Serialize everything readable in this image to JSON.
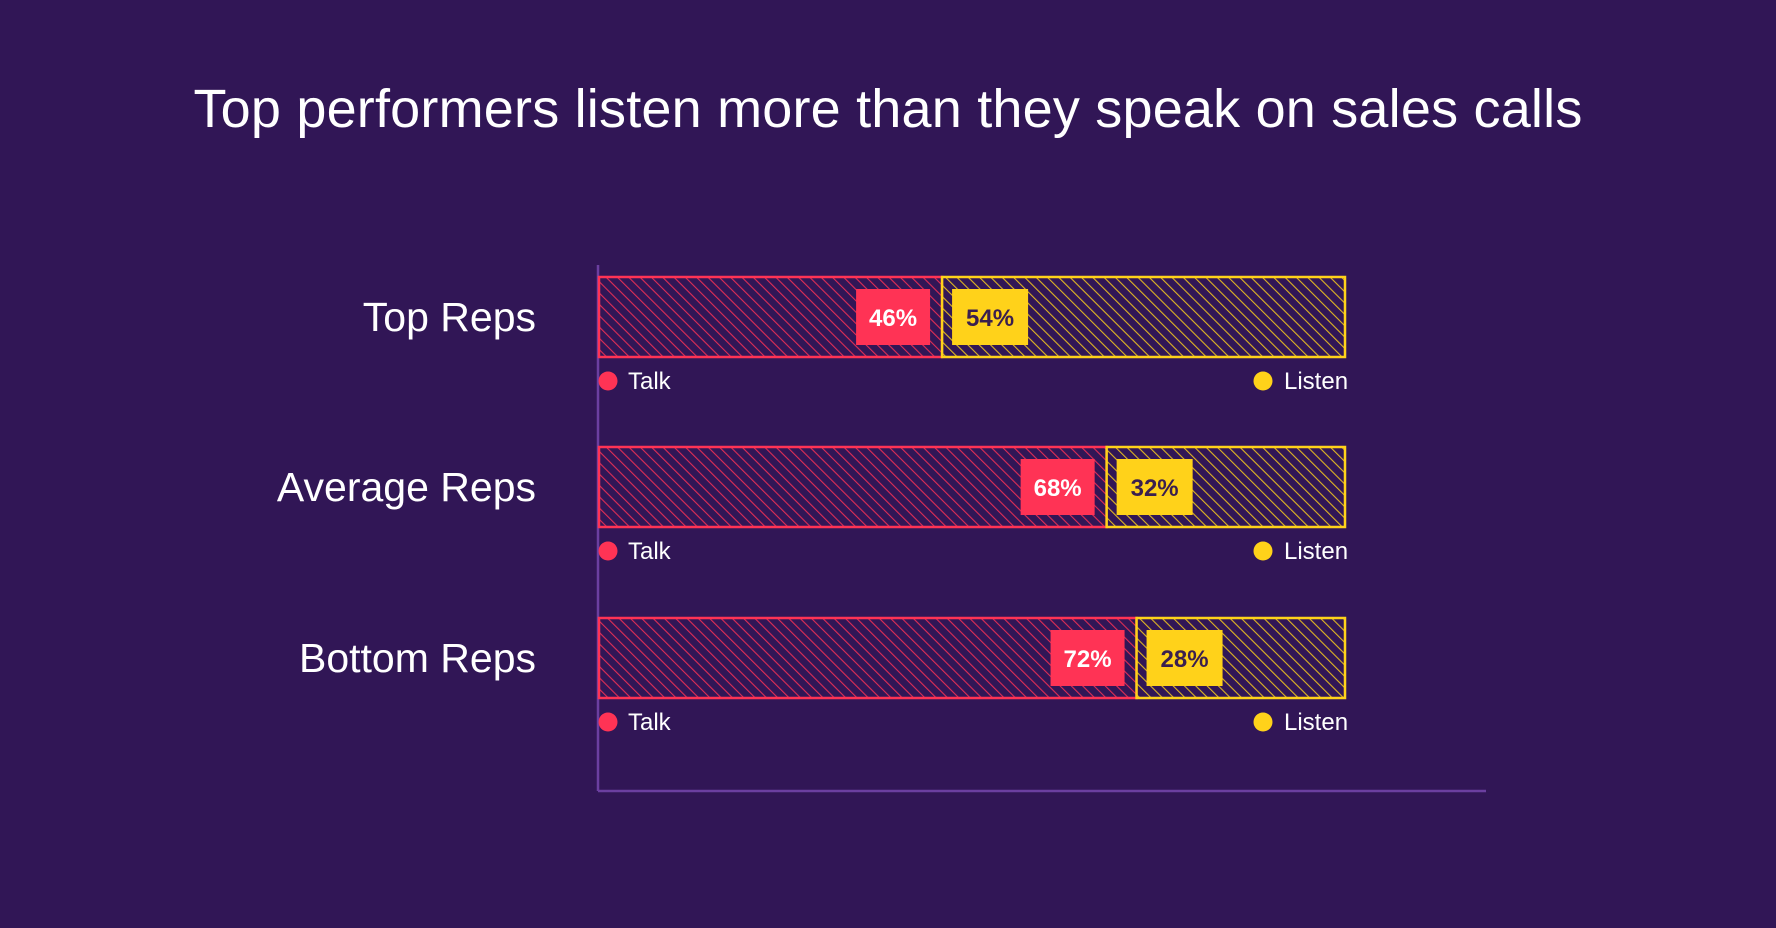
{
  "title": "Top performers listen more than they speak on sales calls",
  "colors": {
    "background": "#311656",
    "talk": "#FF3355",
    "listen": "#FFD21A",
    "axis": "#6B3FA0",
    "listen_label_text": "#3A1F4F",
    "talk_label_text": "#FFFFFF"
  },
  "chart_data": {
    "type": "bar",
    "stacked": true,
    "orientation": "horizontal",
    "categories": [
      "Top Reps",
      "Average Reps",
      "Bottom Reps"
    ],
    "series": [
      {
        "name": "Talk",
        "values": [
          46,
          68,
          72
        ],
        "labels": [
          "46%",
          "68%",
          "72%"
        ]
      },
      {
        "name": "Listen",
        "values": [
          54,
          32,
          28
        ],
        "labels": [
          "54%",
          "32%",
          "28%"
        ]
      }
    ],
    "xlim": [
      0,
      100
    ],
    "grid": false,
    "legend": "below-each-bar",
    "legend_labels": {
      "talk": "Talk",
      "listen": "Listen"
    }
  }
}
